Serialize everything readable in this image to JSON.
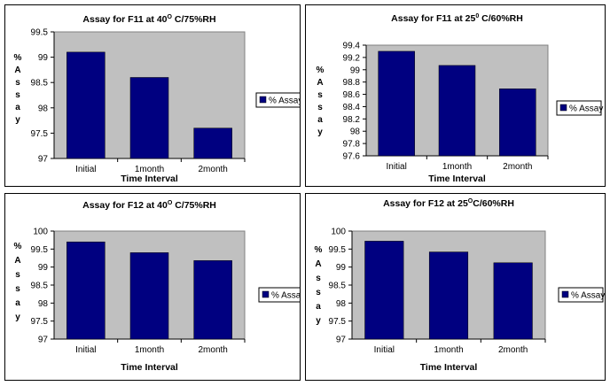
{
  "colors": {
    "bar": "#000080",
    "plot_bg": "#c0c0c0",
    "plot_border": "#808080"
  },
  "chart_data": [
    {
      "type": "bar",
      "title_prefix": "Assay for F11 at 40",
      "title_sup": "O",
      "title_suffix": " C/75%RH",
      "categories": [
        "Initial",
        "1month",
        "2month"
      ],
      "series": [
        {
          "name": "% Assay",
          "values": [
            99.1,
            98.6,
            97.6
          ]
        }
      ],
      "xlabel": "Time Interval",
      "ylabel_letters": [
        "%",
        "A",
        "s",
        "s",
        "a",
        "y"
      ],
      "ylim": [
        97,
        99.5
      ],
      "yticks": [
        "97",
        "97.5",
        "98",
        "98.5",
        "99",
        "99.5"
      ],
      "legend": "right",
      "grid": false
    },
    {
      "type": "bar",
      "title_prefix": "Assay for F11 at 25",
      "title_sup": "0",
      "title_suffix": " C/60%RH",
      "categories": [
        "Initial",
        "1month",
        "2month"
      ],
      "series": [
        {
          "name": "% Assay",
          "values": [
            99.3,
            99.07,
            98.69
          ]
        }
      ],
      "xlabel": "Time Interval",
      "ylabel_letters": [
        "%",
        "A",
        "s",
        "s",
        "a",
        "y"
      ],
      "ylim": [
        97.6,
        99.4
      ],
      "yticks": [
        "97.6",
        "97.8",
        "98",
        "98.2",
        "98.4",
        "98.6",
        "98.8",
        "99",
        "99.2",
        "99.4"
      ],
      "legend": "right",
      "grid": false
    },
    {
      "type": "bar",
      "title_prefix": "Assay for F12 at 40",
      "title_sup": "O",
      "title_suffix": " C/75%RH",
      "categories": [
        "Initial",
        "1month",
        "2month"
      ],
      "series": [
        {
          "name": "% Assay",
          "values": [
            99.7,
            99.4,
            99.18
          ]
        }
      ],
      "xlabel": "Time Interval",
      "ylabel_letters": [
        "%",
        "A",
        "s",
        "s",
        "a",
        "y"
      ],
      "ylim": [
        97,
        100
      ],
      "yticks": [
        "97",
        "97.5",
        "98",
        "98.5",
        "99",
        "99.5",
        "100"
      ],
      "legend": "right",
      "grid": false
    },
    {
      "type": "bar",
      "title_prefix": "Assay for F12 at 25",
      "title_sup": "O",
      "title_suffix": "C/60%RH",
      "categories": [
        "Initial",
        "1month",
        "2month"
      ],
      "series": [
        {
          "name": "% Assay",
          "values": [
            99.72,
            99.42,
            99.12
          ]
        }
      ],
      "xlabel": "Time Interval",
      "ylabel_letters": [
        "%",
        "A",
        "s",
        "s",
        "a",
        "y"
      ],
      "ylim": [
        97,
        100
      ],
      "yticks": [
        "97",
        "97.5",
        "98",
        "98.5",
        "99",
        "99.5",
        "100"
      ],
      "legend": "right",
      "grid": false
    }
  ]
}
